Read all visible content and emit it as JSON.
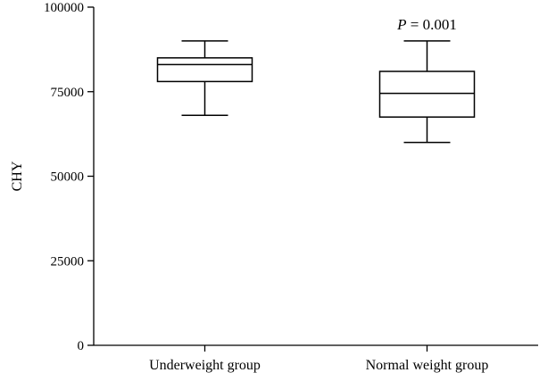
{
  "chart_data": {
    "type": "box",
    "ylabel": "CHY",
    "ylim": [
      0,
      100000
    ],
    "yticks": [
      0,
      25000,
      50000,
      75000,
      100000
    ],
    "categories": [
      "Underweight group",
      "Normal weight group"
    ],
    "boxes": [
      {
        "min": 68000,
        "q1": 78000,
        "median": 83000,
        "q3": 85000,
        "max": 90000
      },
      {
        "min": 60000,
        "q1": 67500,
        "median": 74500,
        "q3": 81000,
        "max": 90000
      }
    ],
    "annotation": {
      "p_symbol": "P",
      "p_text": " = 0.001"
    },
    "grid": false
  }
}
